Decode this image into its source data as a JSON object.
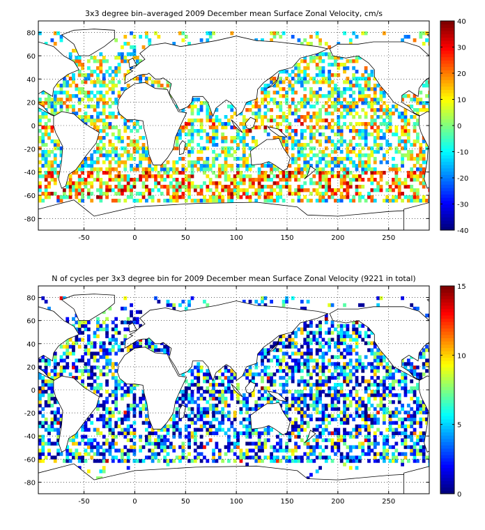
{
  "chart_data": [
    {
      "type": "heatmap",
      "title": "3x3 degree bin–averaged 2009 December mean Surface Zonal Velocity, cm/s",
      "xlim": [
        -95,
        290
      ],
      "ylim": [
        -90,
        90
      ],
      "x_ticks": [
        "-50",
        "0",
        "50",
        "100",
        "150",
        "200",
        "250"
      ],
      "x_tick_values": [
        -50,
        0,
        50,
        100,
        150,
        200,
        250
      ],
      "y_ticks": [
        "80",
        "60",
        "40",
        "20",
        "0",
        "-20",
        "-40",
        "-60",
        "-80"
      ],
      "y_tick_values": [
        80,
        60,
        40,
        20,
        0,
        -20,
        -40,
        -60,
        -80
      ],
      "colorbar_ticks": [
        "40",
        "30",
        "20",
        "10",
        "0",
        "-10",
        "-20",
        "-30",
        "-40"
      ],
      "colorbar_tick_values": [
        40,
        30,
        20,
        10,
        0,
        -10,
        -20,
        -30,
        -40
      ],
      "clim": [
        -40,
        40
      ],
      "colormap": "jet",
      "bin_size_deg": 3,
      "grid": true,
      "seed": 7
    },
    {
      "type": "heatmap",
      "title": "N of cycles per 3x3 degree bin for 2009 December mean Surface Zonal Velocity (9221 in total)",
      "xlim": [
        -95,
        290
      ],
      "ylim": [
        -90,
        90
      ],
      "x_ticks": [
        "-50",
        "0",
        "50",
        "100",
        "150",
        "200",
        "250"
      ],
      "x_tick_values": [
        -50,
        0,
        50,
        100,
        150,
        200,
        250
      ],
      "y_ticks": [
        "80",
        "60",
        "40",
        "20",
        "0",
        "-20",
        "-40",
        "-60",
        "-80"
      ],
      "y_tick_values": [
        80,
        60,
        40,
        20,
        0,
        -20,
        -40,
        -60,
        -80
      ],
      "colorbar_ticks": [
        "15",
        "10",
        "5",
        "0"
      ],
      "colorbar_tick_values": [
        15,
        10,
        5,
        0
      ],
      "clim": [
        0,
        15
      ],
      "colormap": "jet",
      "bin_size_deg": 3,
      "grid": true,
      "seed": 19
    }
  ]
}
